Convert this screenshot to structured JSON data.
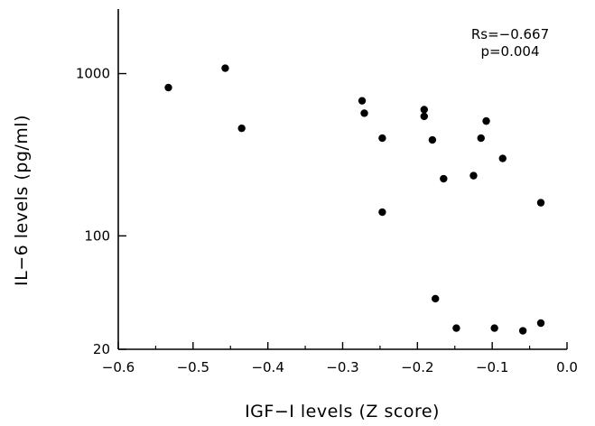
{
  "chart_data": {
    "type": "scatter",
    "xlabel": "IGF−I levels (Z score)",
    "ylabel": "IL−6 levels (pg/ml)",
    "xlim": [
      -0.6,
      0.0
    ],
    "ylim": [
      20,
      2500
    ],
    "y_scale": "log",
    "x_ticks": [
      -0.6,
      -0.5,
      -0.4,
      -0.3,
      -0.2,
      -0.1,
      0.0
    ],
    "x_tick_labels": [
      "−0.6",
      "−0.5",
      "−0.4",
      "−0.3",
      "−0.2",
      "−0.1",
      "0.0"
    ],
    "y_ticks": [
      20,
      100,
      1000
    ],
    "y_tick_labels": [
      "20",
      "100",
      "1000"
    ],
    "grid": false,
    "annotation": [
      "Rs=−0.667",
      "p=0.004"
    ],
    "points": [
      {
        "x": -0.533,
        "y": 820
      },
      {
        "x": -0.457,
        "y": 1080
      },
      {
        "x": -0.435,
        "y": 460
      },
      {
        "x": -0.274,
        "y": 680
      },
      {
        "x": -0.271,
        "y": 570
      },
      {
        "x": -0.247,
        "y": 400
      },
      {
        "x": -0.247,
        "y": 140
      },
      {
        "x": -0.191,
        "y": 600
      },
      {
        "x": -0.191,
        "y": 545
      },
      {
        "x": -0.18,
        "y": 390
      },
      {
        "x": -0.176,
        "y": 41
      },
      {
        "x": -0.165,
        "y": 225
      },
      {
        "x": -0.148,
        "y": 27
      },
      {
        "x": -0.125,
        "y": 235
      },
      {
        "x": -0.115,
        "y": 400
      },
      {
        "x": -0.108,
        "y": 510
      },
      {
        "x": -0.097,
        "y": 27
      },
      {
        "x": -0.086,
        "y": 300
      },
      {
        "x": -0.059,
        "y": 26
      },
      {
        "x": -0.035,
        "y": 160
      },
      {
        "x": -0.035,
        "y": 29
      }
    ]
  }
}
